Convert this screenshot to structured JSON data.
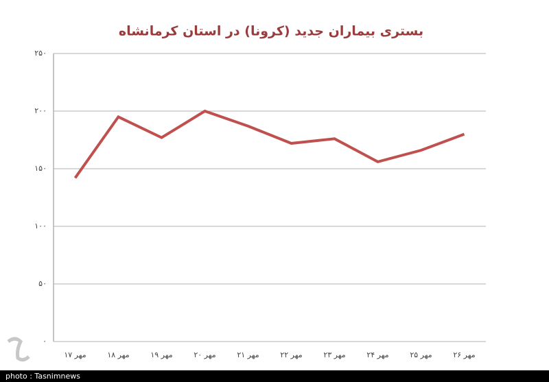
{
  "chart_data": {
    "type": "line",
    "title": "بستری بیماران جدید (کرونا) در استان کرمانشاه",
    "categories": [
      "۱۷ مهر",
      "۱۸ مهر",
      "۱۹ مهر",
      "۲۰ مهر",
      "۲۱ مهر",
      "۲۲ مهر",
      "۲۳ مهر",
      "۲۴ مهر",
      "۲۵ مهر",
      "۲۶ مهر"
    ],
    "values": [
      142,
      195,
      177,
      200,
      187,
      172,
      176,
      156,
      166,
      180
    ],
    "color": "#c0504d",
    "ylim": [
      0,
      250
    ],
    "yticks": [
      {
        "value": 0,
        "label": "۰"
      },
      {
        "value": 50,
        "label": "۵۰"
      },
      {
        "value": 100,
        "label": "۱۰۰"
      },
      {
        "value": 150,
        "label": "۱۵۰"
      },
      {
        "value": 200,
        "label": "۲۰۰"
      },
      {
        "value": 250,
        "label": "۲۵۰"
      }
    ],
    "grid": true
  },
  "credit": "photo : Tasnimnews"
}
